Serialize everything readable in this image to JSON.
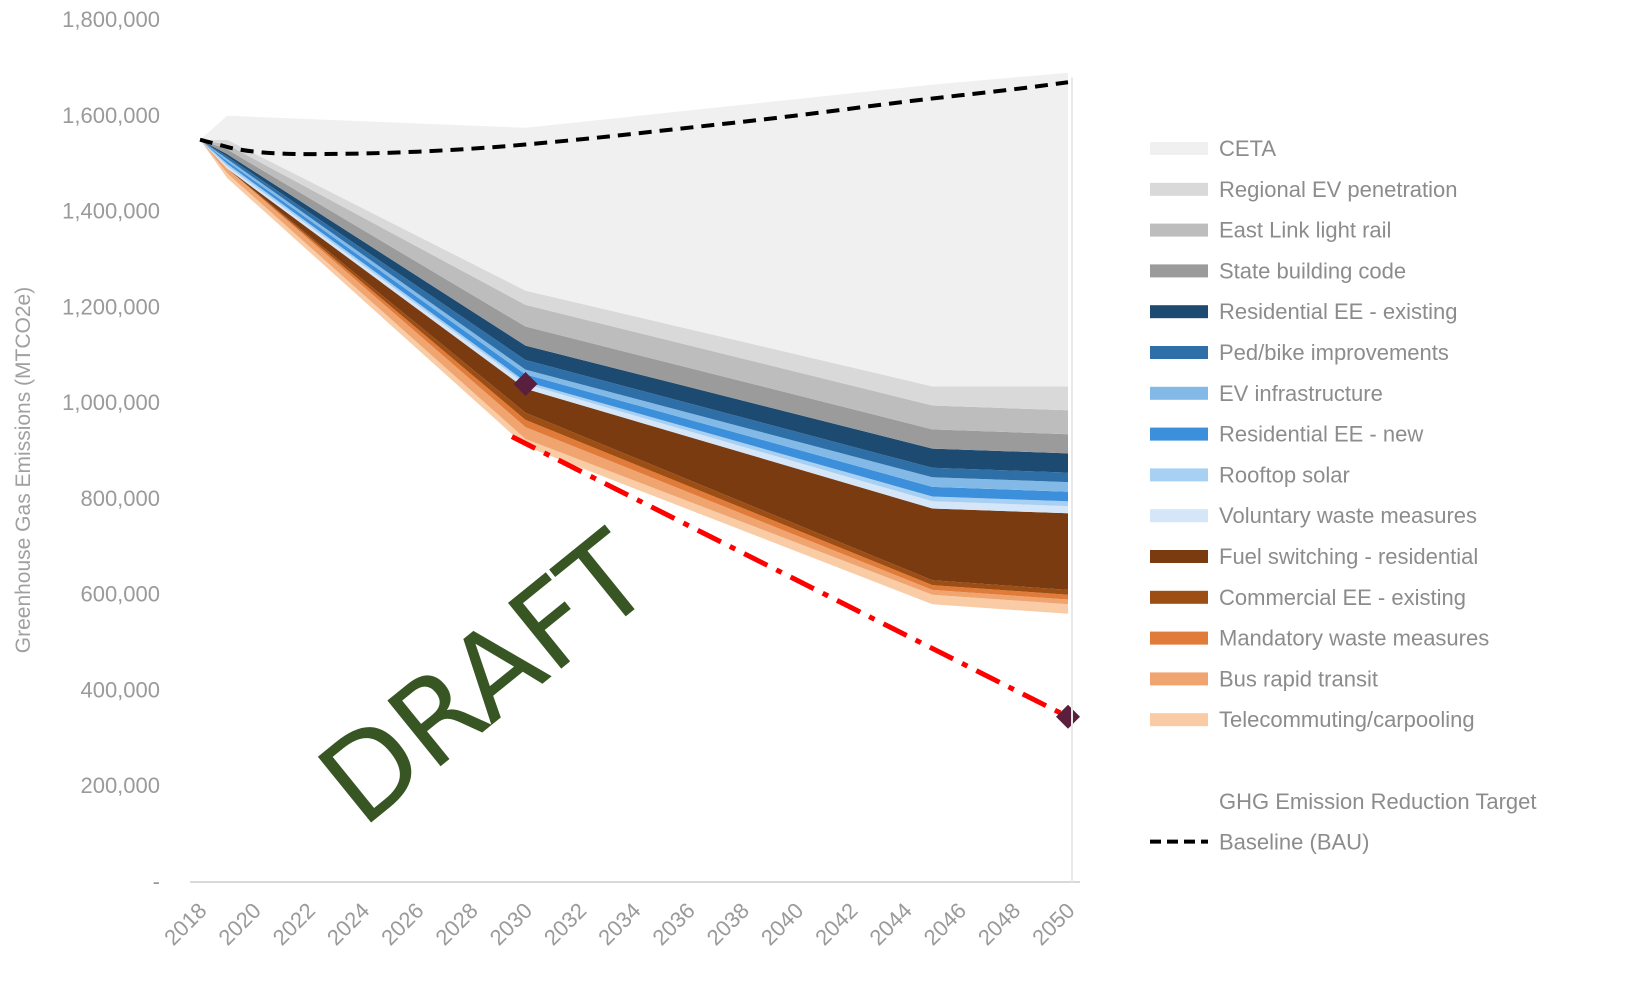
{
  "chart_data": {
    "type": "area",
    "ylabel": "Greenhouse Gas Emissions (MTCO2e)",
    "ylim": [
      0,
      1800000
    ],
    "y_ticks": [
      {
        "value": 0,
        "label": "-"
      },
      {
        "value": 200000,
        "label": "200,000"
      },
      {
        "value": 400000,
        "label": "400,000"
      },
      {
        "value": 600000,
        "label": "600,000"
      },
      {
        "value": 800000,
        "label": "800,000"
      },
      {
        "value": 1000000,
        "label": "1,000,000"
      },
      {
        "value": 1200000,
        "label": "1,200,000"
      },
      {
        "value": 1400000,
        "label": "1,400,000"
      },
      {
        "value": 1600000,
        "label": "1,600,000"
      },
      {
        "value": 1800000,
        "label": "1,800,000"
      }
    ],
    "x_ticks": [
      "2018",
      "2020",
      "2022",
      "2024",
      "2026",
      "2028",
      "2030",
      "2032",
      "2034",
      "2036",
      "2038",
      "2040",
      "2042",
      "2044",
      "2046",
      "2048",
      "2050"
    ],
    "x": [
      2018,
      2019,
      2030,
      2045,
      2050
    ],
    "stack_base": [
      1550000,
      1470000,
      910000,
      580000,
      560000
    ],
    "series": [
      {
        "name": "Telecommuting/carpooling",
        "color": "#f9cca6",
        "values": [
          0,
          10000,
          15000,
          20000,
          20000
        ]
      },
      {
        "name": "Bus rapid transit",
        "color": "#f0a470",
        "values": [
          0,
          10000,
          25000,
          10000,
          10000
        ]
      },
      {
        "name": "Mandatory waste measures",
        "color": "#e07b39",
        "values": [
          0,
          0,
          15000,
          10000,
          10000
        ]
      },
      {
        "name": "Commercial EE - existing",
        "color": "#9c4e14",
        "values": [
          0,
          0,
          15000,
          10000,
          10000
        ]
      },
      {
        "name": "Fuel switching - residential",
        "color": "#7a3b10",
        "values": [
          0,
          0,
          50000,
          150000,
          160000
        ]
      },
      {
        "name": "Voluntary waste measures",
        "color": "#d4e6f7",
        "values": [
          0,
          5000,
          10000,
          15000,
          15000
        ]
      },
      {
        "name": "Rooftop solar",
        "color": "#a8d0f2",
        "values": [
          0,
          5000,
          5000,
          10000,
          10000
        ]
      },
      {
        "name": "Residential EE - new",
        "color": "#3c8fdb",
        "values": [
          0,
          5000,
          15000,
          20000,
          20000
        ]
      },
      {
        "name": "EV infrastructure",
        "color": "#83b9e6",
        "values": [
          0,
          5000,
          10000,
          20000,
          20000
        ]
      },
      {
        "name": "Ped/bike improvements",
        "color": "#2f6fa8",
        "values": [
          0,
          5000,
          20000,
          20000,
          20000
        ]
      },
      {
        "name": "Residential EE - existing",
        "color": "#1c4a70",
        "values": [
          0,
          5000,
          30000,
          40000,
          40000
        ]
      },
      {
        "name": "State building code",
        "color": "#9b9b9b",
        "values": [
          0,
          10000,
          40000,
          40000,
          40000
        ]
      },
      {
        "name": "East Link light rail",
        "color": "#bdbdbd",
        "values": [
          0,
          10000,
          45000,
          50000,
          50000
        ]
      },
      {
        "name": "Regional EV penetration",
        "color": "#d9d9d9",
        "values": [
          0,
          10000,
          30000,
          40000,
          50000
        ]
      },
      {
        "name": "CETA",
        "color": "#f0f0f0",
        "values": [
          0,
          50000,
          340000,
          630000,
          655000
        ]
      }
    ],
    "baseline": {
      "name": "Baseline (BAU)",
      "color": "#000000",
      "x": [
        2018,
        2020,
        2024,
        2028,
        2032,
        2036,
        2040,
        2044,
        2048,
        2050
      ],
      "values": [
        1550000,
        1520000,
        1520000,
        1530000,
        1550000,
        1575000,
        1600000,
        1630000,
        1655000,
        1670000
      ]
    },
    "target": {
      "name": "GHG Emission Reduction Target",
      "color": "#ff0000",
      "line_x": [
        2029.5,
        2050
      ],
      "line_values": [
        930000,
        345000
      ],
      "points": [
        {
          "x": 2030,
          "value": 1040000
        },
        {
          "x": 2050,
          "value": 345000
        }
      ],
      "marker_color": "#5a1f3c"
    },
    "legend_position": "right",
    "grid": false
  },
  "watermark": "DRAFT",
  "colors": {
    "axis": "#d9d9d9",
    "tick_text": "#9a9a9a",
    "legend_text": "#8c8c8c",
    "watermark": "#375623"
  }
}
